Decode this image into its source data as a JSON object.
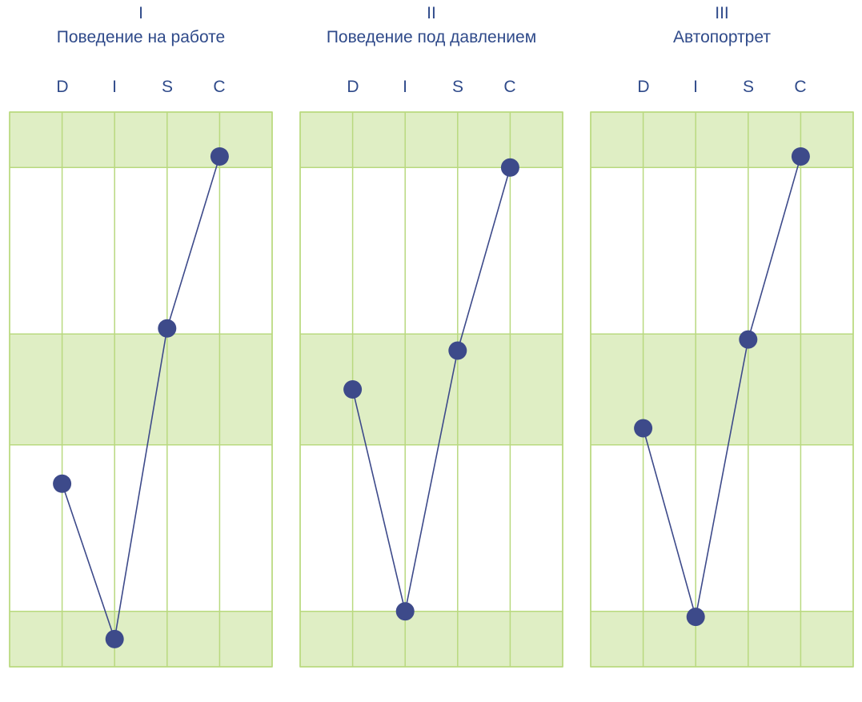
{
  "chart_data": [
    {
      "type": "line",
      "numeral": "I",
      "title": "Поведение на работе",
      "categories": [
        "D",
        "I",
        "S",
        "C"
      ],
      "values": [
        33,
        5,
        61,
        92
      ],
      "ylim": [
        0,
        100
      ],
      "bands": [
        [
          90,
          100
        ],
        [
          40,
          60
        ],
        [
          0,
          10
        ]
      ],
      "colors": {
        "band": "#dfeec4",
        "grid": "#b9d97f",
        "marker": "#3d4a8a",
        "line": "#3d4a8a"
      }
    },
    {
      "type": "line",
      "numeral": "II",
      "title": "Поведение под давлением",
      "categories": [
        "D",
        "I",
        "S",
        "C"
      ],
      "values": [
        50,
        10,
        57,
        90
      ],
      "ylim": [
        0,
        100
      ],
      "bands": [
        [
          90,
          100
        ],
        [
          40,
          60
        ],
        [
          0,
          10
        ]
      ],
      "colors": {
        "band": "#dfeec4",
        "grid": "#b9d97f",
        "marker": "#3d4a8a",
        "line": "#3d4a8a"
      }
    },
    {
      "type": "line",
      "numeral": "III",
      "title": "Автопортрет",
      "categories": [
        "D",
        "I",
        "S",
        "C"
      ],
      "values": [
        43,
        9,
        59,
        92
      ],
      "ylim": [
        0,
        100
      ],
      "bands": [
        [
          90,
          100
        ],
        [
          40,
          60
        ],
        [
          0,
          10
        ]
      ],
      "colors": {
        "band": "#dfeec4",
        "grid": "#b9d97f",
        "marker": "#3d4a8a",
        "line": "#3d4a8a"
      }
    }
  ]
}
